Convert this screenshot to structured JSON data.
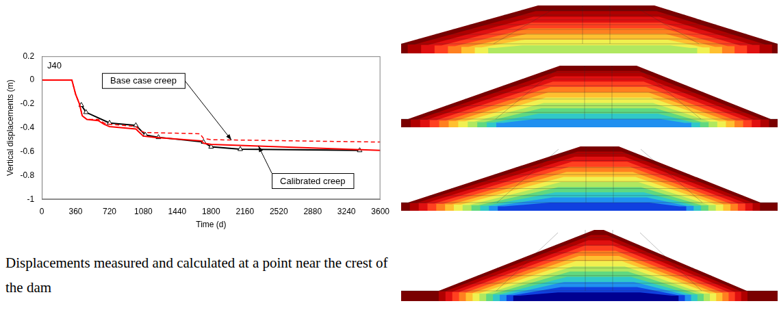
{
  "chart_data": {
    "type": "line",
    "title": "J40",
    "x_label": "Time (d)",
    "y_label": "Vertical displacements (m)",
    "xlim": [
      0,
      3600
    ],
    "xticks": [
      0,
      360,
      720,
      1080,
      1440,
      1800,
      2160,
      2520,
      2880,
      3240,
      3600
    ],
    "ylim": [
      -1,
      0.2
    ],
    "yticks": [
      0.2,
      0,
      -0.2,
      -0.4,
      -0.6,
      -0.8,
      -1
    ],
    "grid": false,
    "series": [
      {
        "color": "#000000",
        "marker": "triangle",
        "line_style": "solid",
        "x": [
          420,
          470,
          720,
          1000,
          1100,
          1240,
          1720,
          1800,
          2110,
          3380
        ],
        "values": [
          -0.21,
          -0.27,
          -0.36,
          -0.38,
          -0.46,
          -0.48,
          -0.52,
          -0.56,
          -0.58,
          -0.59
        ]
      },
      {
        "name": "Base case creep",
        "color": "#ff0000",
        "marker": "none",
        "line_style": "dashed",
        "x": [
          0,
          320,
          360,
          400,
          430,
          480,
          600,
          660,
          720,
          1000,
          1060,
          1100,
          1680,
          1720,
          1800,
          3600
        ],
        "values": [
          0,
          0,
          -0.12,
          -0.2,
          -0.3,
          -0.33,
          -0.33,
          -0.36,
          -0.37,
          -0.39,
          -0.43,
          -0.44,
          -0.45,
          -0.49,
          -0.5,
          -0.52
        ]
      },
      {
        "name": "Calibrated creep",
        "color": "#ff0000",
        "marker": "none",
        "line_style": "solid",
        "x": [
          0,
          320,
          360,
          400,
          430,
          480,
          600,
          660,
          720,
          1000,
          1040,
          1080,
          1200,
          1700,
          1720,
          1800,
          2160,
          3600
        ],
        "values": [
          0,
          0,
          -0.12,
          -0.2,
          -0.3,
          -0.33,
          -0.34,
          -0.37,
          -0.39,
          -0.41,
          -0.44,
          -0.47,
          -0.48,
          -0.51,
          -0.53,
          -0.54,
          -0.55,
          -0.59
        ]
      }
    ]
  },
  "caption": "Displacements measured and calculated at a point near the crest of the dam"
}
